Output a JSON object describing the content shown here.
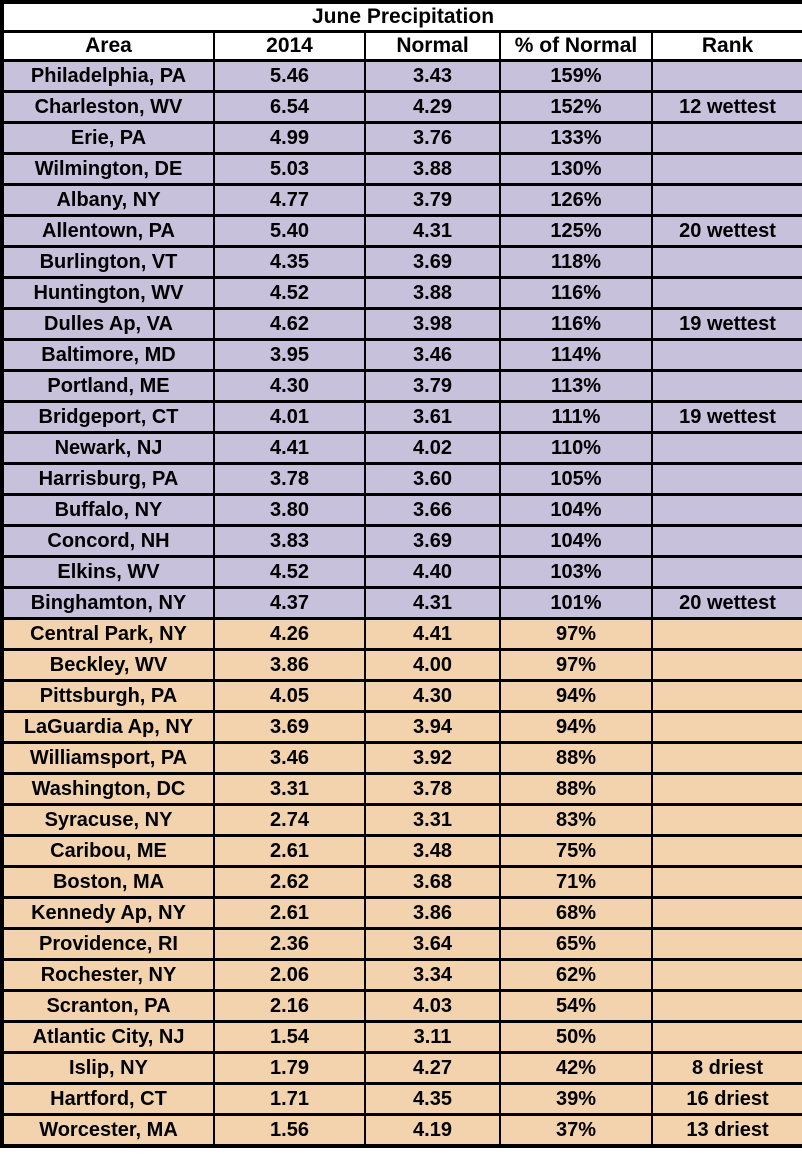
{
  "colors": {
    "above_normal_row_bg": "#C8C1DC",
    "below_normal_row_bg": "#F2D3AE",
    "border": "#000000",
    "header_bg": "#FFFFFF",
    "text": "#000000"
  },
  "chart_data": {
    "type": "table",
    "title": "June Precipitation",
    "columns": [
      "Area",
      "2014",
      "Normal",
      "% of Normal",
      "Rank"
    ],
    "legend": {
      "above_normal_bg": "#C8C1DC",
      "below_normal_bg": "#F2D3AE"
    },
    "rows": [
      {
        "area": "Philadelphia, PA",
        "y2014": 5.46,
        "normal": 3.43,
        "pct_of_normal": 159,
        "rank": "",
        "group": "above_normal"
      },
      {
        "area": "Charleston, WV",
        "y2014": 6.54,
        "normal": 4.29,
        "pct_of_normal": 152,
        "rank": "12 wettest",
        "group": "above_normal"
      },
      {
        "area": "Erie, PA",
        "y2014": 4.99,
        "normal": 3.76,
        "pct_of_normal": 133,
        "rank": "",
        "group": "above_normal"
      },
      {
        "area": "Wilmington, DE",
        "y2014": 5.03,
        "normal": 3.88,
        "pct_of_normal": 130,
        "rank": "",
        "group": "above_normal"
      },
      {
        "area": "Albany, NY",
        "y2014": 4.77,
        "normal": 3.79,
        "pct_of_normal": 126,
        "rank": "",
        "group": "above_normal"
      },
      {
        "area": "Allentown, PA",
        "y2014": 5.4,
        "normal": 4.31,
        "pct_of_normal": 125,
        "rank": "20 wettest",
        "group": "above_normal"
      },
      {
        "area": "Burlington, VT",
        "y2014": 4.35,
        "normal": 3.69,
        "pct_of_normal": 118,
        "rank": "",
        "group": "above_normal"
      },
      {
        "area": "Huntington, WV",
        "y2014": 4.52,
        "normal": 3.88,
        "pct_of_normal": 116,
        "rank": "",
        "group": "above_normal"
      },
      {
        "area": "Dulles Ap, VA",
        "y2014": 4.62,
        "normal": 3.98,
        "pct_of_normal": 116,
        "rank": "19 wettest",
        "group": "above_normal"
      },
      {
        "area": "Baltimore, MD",
        "y2014": 3.95,
        "normal": 3.46,
        "pct_of_normal": 114,
        "rank": "",
        "group": "above_normal"
      },
      {
        "area": "Portland, ME",
        "y2014": 4.3,
        "normal": 3.79,
        "pct_of_normal": 113,
        "rank": "",
        "group": "above_normal"
      },
      {
        "area": "Bridgeport, CT",
        "y2014": 4.01,
        "normal": 3.61,
        "pct_of_normal": 111,
        "rank": "19 wettest",
        "group": "above_normal"
      },
      {
        "area": "Newark, NJ",
        "y2014": 4.41,
        "normal": 4.02,
        "pct_of_normal": 110,
        "rank": "",
        "group": "above_normal"
      },
      {
        "area": "Harrisburg, PA",
        "y2014": 3.78,
        "normal": 3.6,
        "pct_of_normal": 105,
        "rank": "",
        "group": "above_normal"
      },
      {
        "area": "Buffalo, NY",
        "y2014": 3.8,
        "normal": 3.66,
        "pct_of_normal": 104,
        "rank": "",
        "group": "above_normal"
      },
      {
        "area": "Concord, NH",
        "y2014": 3.83,
        "normal": 3.69,
        "pct_of_normal": 104,
        "rank": "",
        "group": "above_normal"
      },
      {
        "area": "Elkins, WV",
        "y2014": 4.52,
        "normal": 4.4,
        "pct_of_normal": 103,
        "rank": "",
        "group": "above_normal"
      },
      {
        "area": "Binghamton, NY",
        "y2014": 4.37,
        "normal": 4.31,
        "pct_of_normal": 101,
        "rank": "20 wettest",
        "group": "above_normal"
      },
      {
        "area": "Central Park, NY",
        "y2014": 4.26,
        "normal": 4.41,
        "pct_of_normal": 97,
        "rank": "",
        "group": "below_normal"
      },
      {
        "area": "Beckley, WV",
        "y2014": 3.86,
        "normal": 4.0,
        "pct_of_normal": 97,
        "rank": "",
        "group": "below_normal"
      },
      {
        "area": "Pittsburgh, PA",
        "y2014": 4.05,
        "normal": 4.3,
        "pct_of_normal": 94,
        "rank": "",
        "group": "below_normal"
      },
      {
        "area": "LaGuardia Ap, NY",
        "y2014": 3.69,
        "normal": 3.94,
        "pct_of_normal": 94,
        "rank": "",
        "group": "below_normal"
      },
      {
        "area": "Williamsport, PA",
        "y2014": 3.46,
        "normal": 3.92,
        "pct_of_normal": 88,
        "rank": "",
        "group": "below_normal"
      },
      {
        "area": "Washington, DC",
        "y2014": 3.31,
        "normal": 3.78,
        "pct_of_normal": 88,
        "rank": "",
        "group": "below_normal"
      },
      {
        "area": "Syracuse, NY",
        "y2014": 2.74,
        "normal": 3.31,
        "pct_of_normal": 83,
        "rank": "",
        "group": "below_normal"
      },
      {
        "area": "Caribou, ME",
        "y2014": 2.61,
        "normal": 3.48,
        "pct_of_normal": 75,
        "rank": "",
        "group": "below_normal"
      },
      {
        "area": "Boston, MA",
        "y2014": 2.62,
        "normal": 3.68,
        "pct_of_normal": 71,
        "rank": "",
        "group": "below_normal"
      },
      {
        "area": "Kennedy Ap, NY",
        "y2014": 2.61,
        "normal": 3.86,
        "pct_of_normal": 68,
        "rank": "",
        "group": "below_normal"
      },
      {
        "area": "Providence, RI",
        "y2014": 2.36,
        "normal": 3.64,
        "pct_of_normal": 65,
        "rank": "",
        "group": "below_normal"
      },
      {
        "area": "Rochester, NY",
        "y2014": 2.06,
        "normal": 3.34,
        "pct_of_normal": 62,
        "rank": "",
        "group": "below_normal"
      },
      {
        "area": "Scranton, PA",
        "y2014": 2.16,
        "normal": 4.03,
        "pct_of_normal": 54,
        "rank": "",
        "group": "below_normal"
      },
      {
        "area": "Atlantic City, NJ",
        "y2014": 1.54,
        "normal": 3.11,
        "pct_of_normal": 50,
        "rank": "",
        "group": "below_normal"
      },
      {
        "area": "Islip, NY",
        "y2014": 1.79,
        "normal": 4.27,
        "pct_of_normal": 42,
        "rank": "8 driest",
        "group": "below_normal"
      },
      {
        "area": "Hartford, CT",
        "y2014": 1.71,
        "normal": 4.35,
        "pct_of_normal": 39,
        "rank": "16 driest",
        "group": "below_normal"
      },
      {
        "area": "Worcester, MA",
        "y2014": 1.56,
        "normal": 4.19,
        "pct_of_normal": 37,
        "rank": "13 driest",
        "group": "below_normal"
      }
    ]
  }
}
